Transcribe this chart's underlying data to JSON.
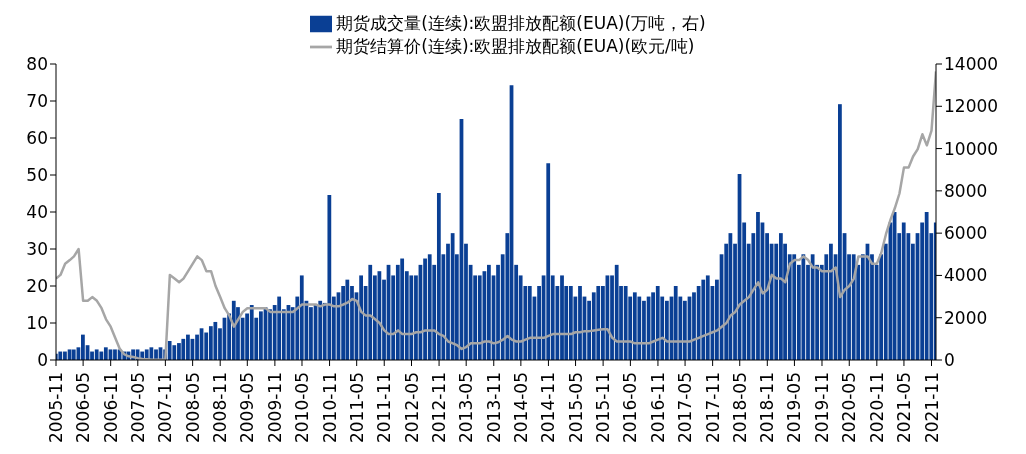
{
  "chart_data": {
    "type": "bar",
    "legend": "top",
    "x": [
      "2005-11",
      "2005-12",
      "2006-01",
      "2006-02",
      "2006-03",
      "2006-04",
      "2006-05",
      "2006-06",
      "2006-07",
      "2006-08",
      "2006-09",
      "2006-10",
      "2006-11",
      "2006-12",
      "2007-01",
      "2007-02",
      "2007-03",
      "2007-04",
      "2007-05",
      "2007-06",
      "2007-07",
      "2007-08",
      "2007-09",
      "2007-10",
      "2007-11",
      "2007-12",
      "2008-01",
      "2008-02",
      "2008-03",
      "2008-04",
      "2008-05",
      "2008-06",
      "2008-07",
      "2008-08",
      "2008-09",
      "2008-10",
      "2008-11",
      "2008-12",
      "2009-01",
      "2009-02",
      "2009-03",
      "2009-04",
      "2009-05",
      "2009-06",
      "2009-07",
      "2009-08",
      "2009-09",
      "2009-10",
      "2009-11",
      "2009-12",
      "2010-01",
      "2010-02",
      "2010-03",
      "2010-04",
      "2010-05",
      "2010-06",
      "2010-07",
      "2010-08",
      "2010-09",
      "2010-10",
      "2010-11",
      "2010-12",
      "2011-01",
      "2011-02",
      "2011-03",
      "2011-04",
      "2011-05",
      "2011-06",
      "2011-07",
      "2011-08",
      "2011-09",
      "2011-10",
      "2011-11",
      "2011-12",
      "2012-01",
      "2012-02",
      "2012-03",
      "2012-04",
      "2012-05",
      "2012-06",
      "2012-07",
      "2012-08",
      "2012-09",
      "2012-10",
      "2012-11",
      "2012-12",
      "2013-01",
      "2013-02",
      "2013-03",
      "2013-04",
      "2013-05",
      "2013-06",
      "2013-07",
      "2013-08",
      "2013-09",
      "2013-10",
      "2013-11",
      "2013-12",
      "2014-01",
      "2014-02",
      "2014-03",
      "2014-04",
      "2014-05",
      "2014-06",
      "2014-07",
      "2014-08",
      "2014-09",
      "2014-10",
      "2014-11",
      "2014-12",
      "2015-01",
      "2015-02",
      "2015-03",
      "2015-04",
      "2015-05",
      "2015-06",
      "2015-07",
      "2015-08",
      "2015-09",
      "2015-10",
      "2015-11",
      "2015-12",
      "2016-01",
      "2016-02",
      "2016-03",
      "2016-04",
      "2016-05",
      "2016-06",
      "2016-07",
      "2016-08",
      "2016-09",
      "2016-10",
      "2016-11",
      "2016-12",
      "2017-01",
      "2017-02",
      "2017-03",
      "2017-04",
      "2017-05",
      "2017-06",
      "2017-07",
      "2017-08",
      "2017-09",
      "2017-10",
      "2017-11",
      "2017-12",
      "2018-01",
      "2018-02",
      "2018-03",
      "2018-04",
      "2018-05",
      "2018-06",
      "2018-07",
      "2018-08",
      "2018-09",
      "2018-10",
      "2018-11",
      "2018-12",
      "2019-01",
      "2019-02",
      "2019-03",
      "2019-04",
      "2019-05",
      "2019-06",
      "2019-07",
      "2019-08",
      "2019-09",
      "2019-10",
      "2019-11",
      "2019-12",
      "2020-01",
      "2020-02",
      "2020-03",
      "2020-04",
      "2020-05",
      "2020-06",
      "2020-07",
      "2020-08",
      "2020-09",
      "2020-10",
      "2020-11",
      "2020-12",
      "2021-01",
      "2021-02",
      "2021-03",
      "2021-04",
      "2021-05",
      "2021-06",
      "2021-07",
      "2021-08",
      "2021-09",
      "2021-10",
      "2021-11",
      "2021-12"
    ],
    "series": [
      {
        "name": "期货成交量(连续):欧盟排放配额(EUA)(万吨，右)",
        "axis": "y2",
        "color": "#0a3f94",
        "values": [
          300,
          400,
          400,
          500,
          500,
          600,
          1200,
          700,
          400,
          500,
          400,
          600,
          500,
          500,
          500,
          400,
          400,
          500,
          500,
          400,
          500,
          600,
          500,
          600,
          500,
          900,
          700,
          800,
          1000,
          1200,
          1000,
          1200,
          1500,
          1300,
          1600,
          1800,
          1500,
          2000,
          2200,
          2800,
          2500,
          2000,
          2200,
          2600,
          2000,
          2300,
          2500,
          2400,
          2600,
          3000,
          2400,
          2600,
          2500,
          3000,
          4000,
          2800,
          2500,
          2600,
          2800,
          2700,
          7800,
          3000,
          3200,
          3500,
          3800,
          3500,
          3200,
          4000,
          3500,
          4500,
          4000,
          4200,
          3800,
          4500,
          4000,
          4500,
          4800,
          4200,
          4000,
          4000,
          4500,
          4800,
          5000,
          4500,
          7900,
          5000,
          5500,
          6000,
          5000,
          11400,
          5500,
          4500,
          4000,
          4000,
          4200,
          4500,
          4000,
          4500,
          5000,
          6000,
          13000,
          4500,
          4000,
          3500,
          3500,
          3000,
          3500,
          4000,
          9300,
          4000,
          3500,
          4000,
          3500,
          3500,
          3000,
          3500,
          3000,
          2800,
          3200,
          3500,
          3500,
          4000,
          4000,
          4500,
          3500,
          3500,
          3000,
          3200,
          3000,
          2800,
          3000,
          3200,
          3500,
          3000,
          2800,
          3000,
          3500,
          3000,
          2800,
          3000,
          3200,
          3500,
          3800,
          4000,
          3500,
          3800,
          5000,
          5500,
          6000,
          5500,
          8800,
          6500,
          5500,
          6000,
          7000,
          6500,
          6000,
          5500,
          5500,
          6000,
          5500,
          5000,
          5000,
          4500,
          5000,
          4500,
          5000,
          4500,
          4500,
          5000,
          5500,
          5000,
          12100,
          6000,
          5000,
          5000,
          4500,
          5000,
          5500,
          5000,
          4500,
          5000,
          5500,
          6500,
          7000,
          6000,
          6500,
          6000,
          5500,
          6000,
          6500,
          7000,
          6000,
          6500
        ]
      },
      {
        "name": "期货结算价(连续):欧盟排放配额(EUA)(欧元/吨)",
        "type": "line",
        "color": "#a6a6a6",
        "values": [
          22,
          23,
          26,
          27,
          28,
          30,
          16,
          16,
          17,
          16,
          14,
          11,
          9,
          6,
          3,
          1.5,
          1,
          0.8,
          0.5,
          0.3,
          0.2,
          0.1,
          0.1,
          0.1,
          0.1,
          23,
          22,
          21,
          22,
          24,
          26,
          28,
          27,
          24,
          24,
          20,
          17,
          14,
          12,
          9,
          11,
          13,
          14,
          14,
          14,
          14,
          14,
          13,
          13,
          13,
          13,
          13,
          13,
          14,
          15,
          15,
          15,
          15,
          14.5,
          15,
          15,
          14.5,
          14.5,
          15,
          15.5,
          16.5,
          16,
          13,
          12,
          12,
          11,
          10,
          8,
          7,
          7,
          8,
          7,
          7,
          7,
          7.5,
          7.5,
          8,
          8,
          8,
          7,
          6.5,
          5,
          4.5,
          4,
          3,
          3.5,
          4.5,
          4.5,
          4.5,
          5,
          5,
          4.5,
          4.8,
          5.5,
          6.5,
          5.5,
          5,
          5,
          5.5,
          6,
          6,
          6,
          6,
          6.5,
          7,
          7,
          7,
          7,
          7,
          7.5,
          7.5,
          7.8,
          7.8,
          8,
          8.2,
          8.3,
          8.3,
          6,
          5,
          5,
          5,
          5,
          4.5,
          4.5,
          4.5,
          4.5,
          5,
          5.5,
          6,
          5,
          5,
          5,
          5,
          5,
          5,
          5.5,
          6,
          6.5,
          7,
          7.5,
          8,
          9,
          10,
          12,
          13,
          15,
          16,
          17,
          19,
          21,
          18,
          19,
          23,
          22,
          22,
          21,
          26,
          27,
          27,
          28,
          27,
          25,
          25,
          24,
          24,
          24,
          25,
          17,
          19,
          20,
          22,
          28,
          28,
          28,
          26,
          26,
          29,
          34,
          38,
          41,
          45,
          52,
          52,
          55,
          57,
          61,
          58,
          62,
          78
        ]
      }
    ],
    "xlim": [
      "2005-11",
      "2021-12"
    ],
    "xticks": [
      "2005-11",
      "2006-05",
      "2006-11",
      "2007-05",
      "2007-11",
      "2008-05",
      "2008-11",
      "2009-05",
      "2009-11",
      "2010-05",
      "2010-11",
      "2011-05",
      "2011-11",
      "2012-05",
      "2012-11",
      "2013-05",
      "2013-11",
      "2014-05",
      "2014-11",
      "2015-05",
      "2015-11",
      "2016-05",
      "2016-11",
      "2017-05",
      "2017-11",
      "2018-05",
      "2018-11",
      "2019-05",
      "2019-11",
      "2020-05",
      "2020-11",
      "2021-05",
      "2021-11"
    ],
    "ylim": [
      0,
      80
    ],
    "yticks": [
      0,
      10,
      20,
      30,
      40,
      50,
      60,
      70,
      80
    ],
    "y2lim": [
      0,
      14000
    ],
    "y2ticks": [
      0,
      2000,
      4000,
      6000,
      8000,
      10000,
      12000,
      14000
    ]
  }
}
